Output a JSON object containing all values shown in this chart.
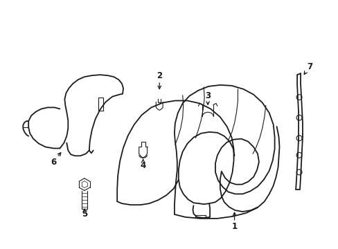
{
  "bg": "#ffffff",
  "lc": "#1a1a1a",
  "fig_w": 4.89,
  "fig_h": 3.6,
  "dpi": 100
}
